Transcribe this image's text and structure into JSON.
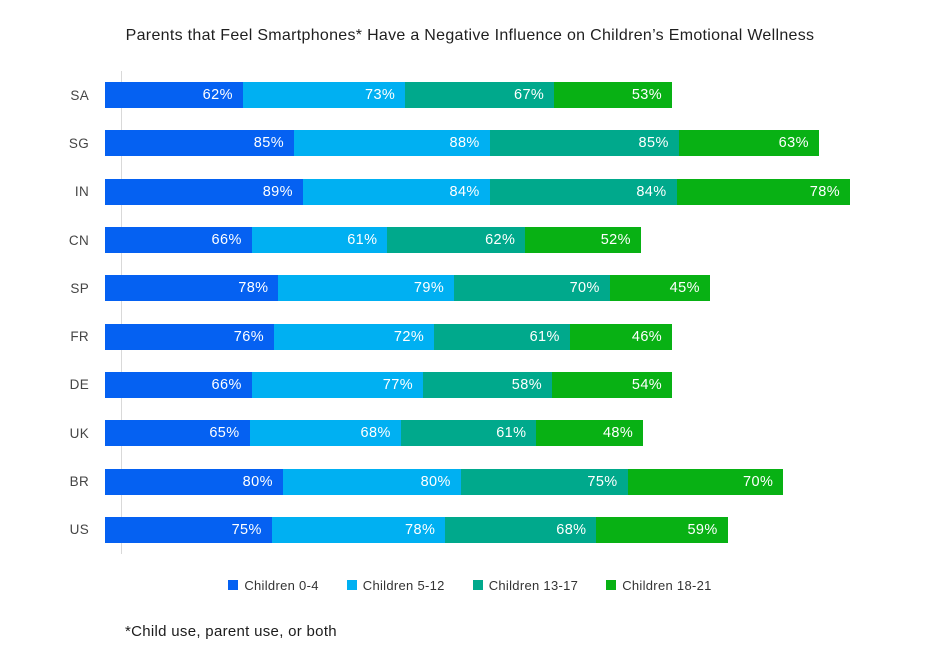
{
  "title": "Parents that Feel Smartphones* Have a Negative Influence on Children’s Emotional Wellness",
  "footnote": "*Child use, parent use, or both",
  "chart_data": {
    "type": "bar",
    "variant": "horizontal-stacked",
    "title": "Parents that Feel Smartphones* Have a Negative Influence on Children’s Emotional Wellness",
    "categories": [
      "SA",
      "SG",
      "IN",
      "CN",
      "SP",
      "FR",
      "DE",
      "UK",
      "BR",
      "US"
    ],
    "series": [
      {
        "name": "Children 0-4",
        "color": "#0561f2",
        "values": [
          62,
          85,
          89,
          66,
          78,
          76,
          66,
          65,
          80,
          75
        ]
      },
      {
        "name": "Children 5-12",
        "color": "#00b0f2",
        "values": [
          73,
          88,
          84,
          61,
          79,
          72,
          77,
          68,
          80,
          78
        ]
      },
      {
        "name": "Children 13-17",
        "color": "#00a98c",
        "values": [
          67,
          85,
          84,
          62,
          70,
          61,
          58,
          61,
          75,
          68
        ]
      },
      {
        "name": "Children 18-21",
        "color": "#08b114",
        "values": [
          53,
          63,
          78,
          52,
          45,
          46,
          54,
          48,
          70,
          59
        ]
      }
    ],
    "value_suffix": "%",
    "axis_max": 100,
    "data_labels": "inside-end",
    "legend_position": "bottom",
    "grid": false,
    "axis_line_color": "#d9d9d9"
  }
}
